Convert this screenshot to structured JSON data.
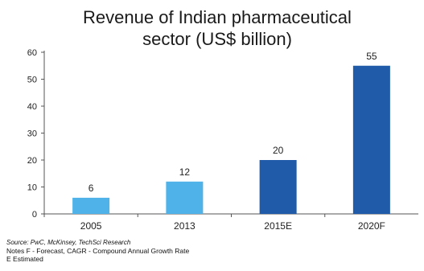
{
  "chart_data": {
    "type": "bar",
    "title_line1": "Revenue of Indian pharmaceutical",
    "title_line2": "sector (US$ billion)",
    "categories": [
      "2005",
      "2013",
      "2015E",
      "2020F"
    ],
    "values": [
      6,
      12,
      20,
      55
    ],
    "ylim": [
      0,
      60
    ],
    "yticks": [
      0,
      10,
      20,
      30,
      40,
      50,
      60
    ],
    "bar_colors": [
      "#4fb3ea",
      "#4fb3ea",
      "#1f5ba8",
      "#1f5ba8"
    ],
    "grid": false
  },
  "footnotes": {
    "source": "Source: PwC, McKinsey, TechSci Research",
    "notes": "Notes F - Forecast, CAGR - Compound Annual Growth Rate",
    "estimated": "E Estimated"
  }
}
